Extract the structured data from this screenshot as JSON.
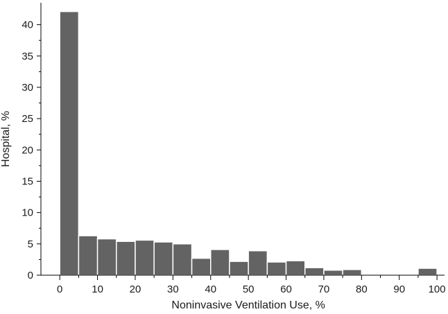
{
  "chart_data": {
    "type": "bar",
    "histogram": true,
    "xlabel": "Noninvasive Ventilation Use, %",
    "ylabel": "Hospital, %",
    "xlim": [
      -5,
      102
    ],
    "ylim": [
      0,
      43.5
    ],
    "xticks": [
      0,
      10,
      20,
      30,
      40,
      50,
      60,
      70,
      80,
      90,
      100
    ],
    "yticks": [
      0,
      5,
      10,
      15,
      20,
      25,
      30,
      35,
      40
    ],
    "bin_width": 5,
    "bins": [
      {
        "start": 0,
        "end": 5,
        "value": 42.1
      },
      {
        "start": 5,
        "end": 10,
        "value": 6.3
      },
      {
        "start": 10,
        "end": 15,
        "value": 5.8
      },
      {
        "start": 15,
        "end": 20,
        "value": 5.4
      },
      {
        "start": 20,
        "end": 25,
        "value": 5.6
      },
      {
        "start": 25,
        "end": 30,
        "value": 5.3
      },
      {
        "start": 30,
        "end": 35,
        "value": 5.0
      },
      {
        "start": 35,
        "end": 40,
        "value": 2.7
      },
      {
        "start": 40,
        "end": 45,
        "value": 4.1
      },
      {
        "start": 45,
        "end": 50,
        "value": 2.2
      },
      {
        "start": 50,
        "end": 55,
        "value": 3.9
      },
      {
        "start": 55,
        "end": 60,
        "value": 2.1
      },
      {
        "start": 60,
        "end": 65,
        "value": 2.3
      },
      {
        "start": 65,
        "end": 70,
        "value": 1.2
      },
      {
        "start": 70,
        "end": 75,
        "value": 0.8
      },
      {
        "start": 75,
        "end": 80,
        "value": 0.9
      },
      {
        "start": 80,
        "end": 85,
        "value": 0.15
      },
      {
        "start": 85,
        "end": 90,
        "value": 0
      },
      {
        "start": 90,
        "end": 95,
        "value": 0
      },
      {
        "start": 95,
        "end": 100,
        "value": 1.1
      }
    ],
    "bar_color": "#636363",
    "bar_edge_color": "#ffffff",
    "grid": false,
    "legend": "none"
  }
}
